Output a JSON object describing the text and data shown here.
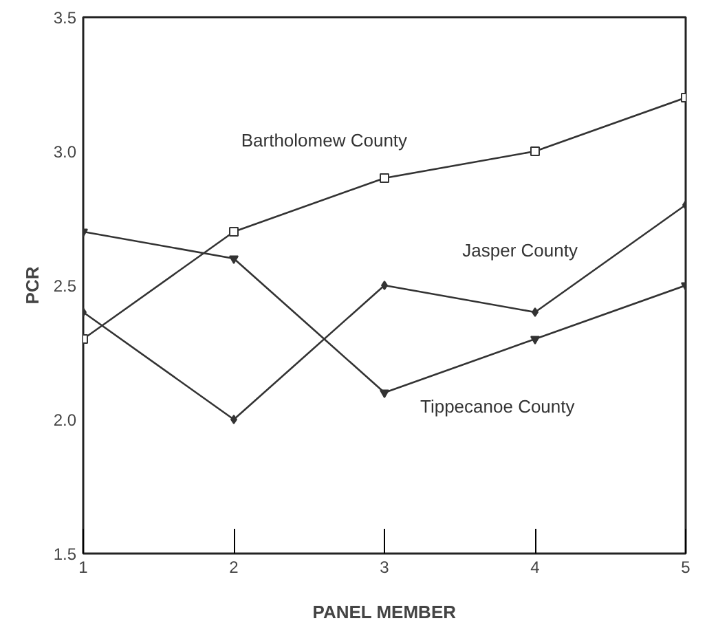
{
  "chart_data": {
    "type": "line",
    "xlabel": "PANEL MEMBER",
    "ylabel": "PCR",
    "x": [
      1,
      2,
      3,
      4,
      5
    ],
    "xlim": [
      1,
      5
    ],
    "ylim": [
      1.5,
      3.5
    ],
    "xticks": [
      1,
      2,
      3,
      4,
      5
    ],
    "yticks": [
      1.5,
      {
        "value": 2,
        "label": "2.0"
      },
      2.5,
      {
        "value": 3,
        "label": "3.0"
      },
      3.5
    ],
    "grid": false,
    "line_style": "solid",
    "series": [
      {
        "name": "Bartholomew County",
        "color": "#333333",
        "marker": "square",
        "values": [
          2.3,
          2.7,
          2.9,
          3.0,
          3.2
        ]
      },
      {
        "name": "Jasper County",
        "color": "#333333",
        "marker": "diamond",
        "values": [
          2.4,
          2.0,
          2.5,
          2.4,
          2.8
        ]
      },
      {
        "name": "Tippecanoe County",
        "color": "#333333",
        "marker": "triangle",
        "values": [
          2.7,
          2.6,
          2.1,
          2.3,
          2.5
        ]
      }
    ]
  }
}
